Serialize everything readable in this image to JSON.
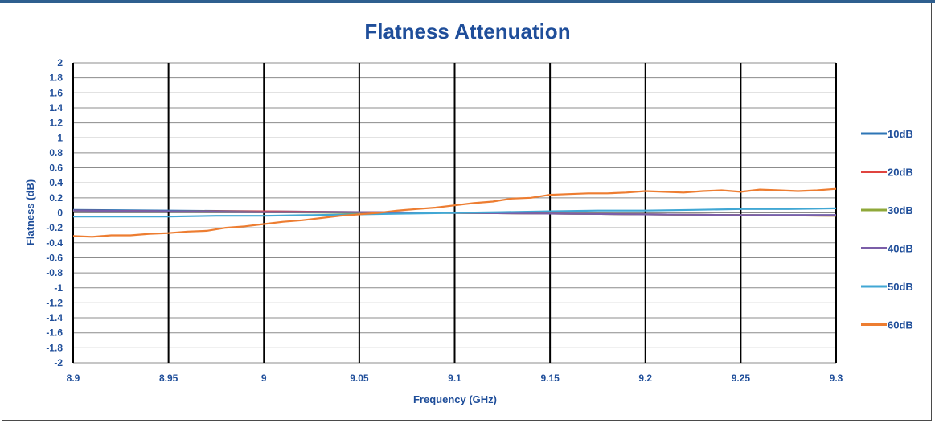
{
  "chart_data": {
    "type": "line",
    "title": "Flatness Attenuation",
    "xlabel": "Frequency (GHz)",
    "ylabel": "Flatness (dB)",
    "xlim": [
      8.9,
      9.3
    ],
    "ylim": [
      -2,
      2
    ],
    "x_ticks": [
      8.9,
      8.95,
      9,
      9.05,
      9.1,
      9.15,
      9.2,
      9.25,
      9.3
    ],
    "x_tick_labels": [
      "8.9",
      "8.95",
      "9",
      "9.05",
      "9.1",
      "9.15",
      "9.2",
      "9.25",
      "9.3"
    ],
    "y_ticks": [
      2,
      1.8,
      1.6,
      1.4,
      1.2,
      1,
      0.8,
      0.6,
      0.4,
      0.2,
      0,
      -0.2,
      -0.4,
      -0.6,
      -0.8,
      -1,
      -1.2,
      -1.4,
      -1.6,
      -1.8,
      -2
    ],
    "y_tick_labels": [
      "2",
      "1.8",
      "1.6",
      "1.4",
      "1.2",
      "1",
      "0.8",
      "0.6",
      "0.4",
      "0.2",
      "0",
      "-0.2",
      "-0.4",
      "-0.6",
      "-0.8",
      "-1",
      "-1.2",
      "-1.4",
      "-1.6",
      "-1.8",
      "-2"
    ],
    "grid": "on",
    "legend_position": "right",
    "series": [
      {
        "name": "10dB",
        "color": "#2e75b6",
        "x": [
          8.9,
          8.95,
          9.0,
          9.05,
          9.1,
          9.15,
          9.2,
          9.25,
          9.3
        ],
        "y": [
          0.04,
          0.03,
          0.02,
          0.01,
          0.0,
          -0.01,
          -0.02,
          -0.03,
          -0.03
        ]
      },
      {
        "name": "20dB",
        "color": "#e0443f",
        "x": [
          8.9,
          8.95,
          9.0,
          9.05,
          9.1,
          9.15,
          9.2,
          9.25,
          9.3
        ],
        "y": [
          0.03,
          0.02,
          0.02,
          0.01,
          0.0,
          -0.01,
          -0.02,
          -0.03,
          -0.04
        ]
      },
      {
        "name": "30dB",
        "color": "#8fa83a",
        "x": [
          8.9,
          8.95,
          9.0,
          9.05,
          9.1,
          9.15,
          9.2,
          9.25,
          9.3
        ],
        "y": [
          0.02,
          0.02,
          0.01,
          0.0,
          0.0,
          -0.01,
          -0.02,
          -0.03,
          -0.04
        ]
      },
      {
        "name": "40dB",
        "color": "#7b5ea8",
        "x": [
          8.9,
          8.95,
          9.0,
          9.05,
          9.1,
          9.15,
          9.2,
          9.25,
          9.3
        ],
        "y": [
          0.03,
          0.02,
          0.01,
          0.01,
          0.0,
          -0.01,
          -0.02,
          -0.03,
          -0.03
        ]
      },
      {
        "name": "50dB",
        "color": "#41a7d4",
        "x": [
          8.9,
          8.925,
          8.95,
          8.975,
          9.0,
          9.025,
          9.05,
          9.075,
          9.1,
          9.125,
          9.15,
          9.175,
          9.2,
          9.225,
          9.25,
          9.275,
          9.3
        ],
        "y": [
          -0.05,
          -0.05,
          -0.05,
          -0.04,
          -0.04,
          -0.03,
          -0.02,
          -0.01,
          0.0,
          0.01,
          0.02,
          0.03,
          0.03,
          0.04,
          0.05,
          0.05,
          0.06
        ]
      },
      {
        "name": "60dB",
        "color": "#ed7d31",
        "x": [
          8.9,
          8.91,
          8.92,
          8.93,
          8.94,
          8.95,
          8.96,
          8.97,
          8.98,
          8.99,
          9.0,
          9.01,
          9.02,
          9.03,
          9.04,
          9.05,
          9.06,
          9.07,
          9.08,
          9.09,
          9.1,
          9.11,
          9.12,
          9.13,
          9.14,
          9.15,
          9.16,
          9.17,
          9.18,
          9.19,
          9.2,
          9.21,
          9.22,
          9.23,
          9.24,
          9.25,
          9.26,
          9.27,
          9.28,
          9.29,
          9.3
        ],
        "y": [
          -0.31,
          -0.32,
          -0.3,
          -0.3,
          -0.28,
          -0.27,
          -0.25,
          -0.24,
          -0.2,
          -0.18,
          -0.15,
          -0.12,
          -0.1,
          -0.07,
          -0.04,
          -0.02,
          0.0,
          0.03,
          0.05,
          0.07,
          0.1,
          0.13,
          0.15,
          0.19,
          0.2,
          0.24,
          0.25,
          0.26,
          0.26,
          0.27,
          0.29,
          0.28,
          0.27,
          0.29,
          0.3,
          0.28,
          0.31,
          0.3,
          0.29,
          0.3,
          0.32
        ]
      }
    ]
  }
}
